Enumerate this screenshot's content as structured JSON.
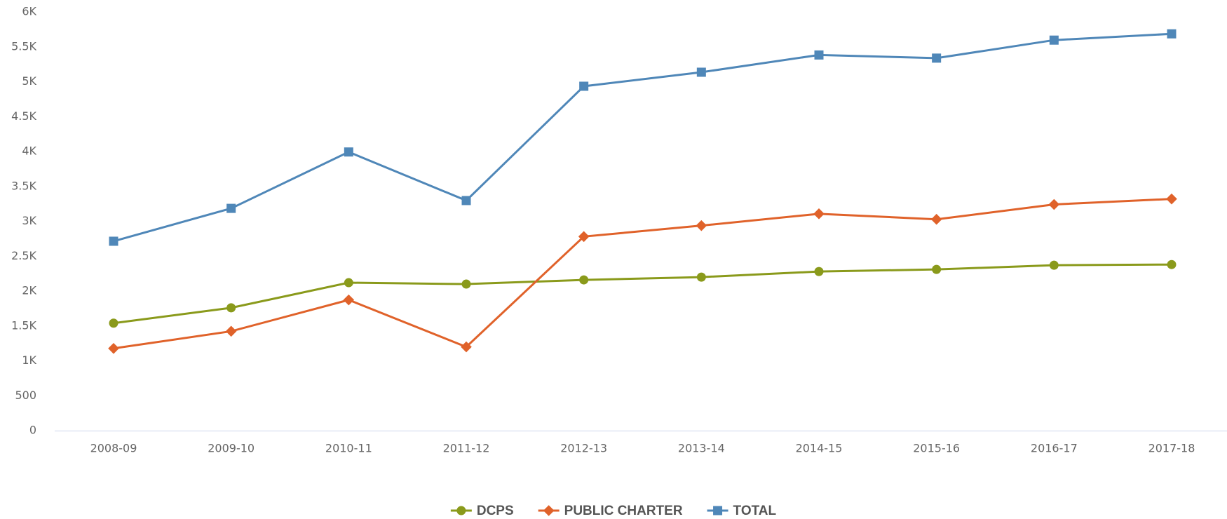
{
  "chart_data": {
    "type": "line",
    "categories": [
      "2008-09",
      "2009-10",
      "2010-11",
      "2011-12",
      "2012-13",
      "2013-14",
      "2014-15",
      "2015-16",
      "2016-17",
      "2017-18"
    ],
    "series": [
      {
        "name": "DCPS",
        "color": "#8a9a1b",
        "marker": "circle",
        "values": [
          1540,
          1760,
          2120,
          2100,
          2160,
          2200,
          2280,
          2310,
          2370,
          2380
        ]
      },
      {
        "name": "PUBLIC CHARTER",
        "color": "#e0622a",
        "marker": "diamond",
        "values": [
          1178,
          1424,
          1873,
          1200,
          2781,
          2938,
          3107,
          3028,
          3241,
          3320
        ]
      },
      {
        "name": "TOTAL",
        "color": "#4f87b8",
        "marker": "square",
        "values": [
          2714,
          3185,
          3993,
          3297,
          4935,
          5136,
          5383,
          5338,
          5596,
          5686
        ]
      }
    ],
    "ylim": [
      0,
      6000
    ],
    "yticks": [
      0,
      500,
      {
        "value": 1000,
        "label": "1K"
      },
      {
        "value": 1500,
        "label": "1.5K"
      },
      {
        "value": 2000,
        "label": "2K"
      },
      {
        "value": 2500,
        "label": "2.5K"
      },
      {
        "value": 3000,
        "label": "3K"
      },
      {
        "value": 3500,
        "label": "3.5K"
      },
      {
        "value": 4000,
        "label": "4K"
      },
      {
        "value": 4500,
        "label": "4.5K"
      },
      {
        "value": 5000,
        "label": "5K"
      },
      {
        "value": 5500,
        "label": "5.5K"
      },
      {
        "value": 6000,
        "label": "6K"
      }
    ],
    "grid": false,
    "legend": "bottom"
  }
}
